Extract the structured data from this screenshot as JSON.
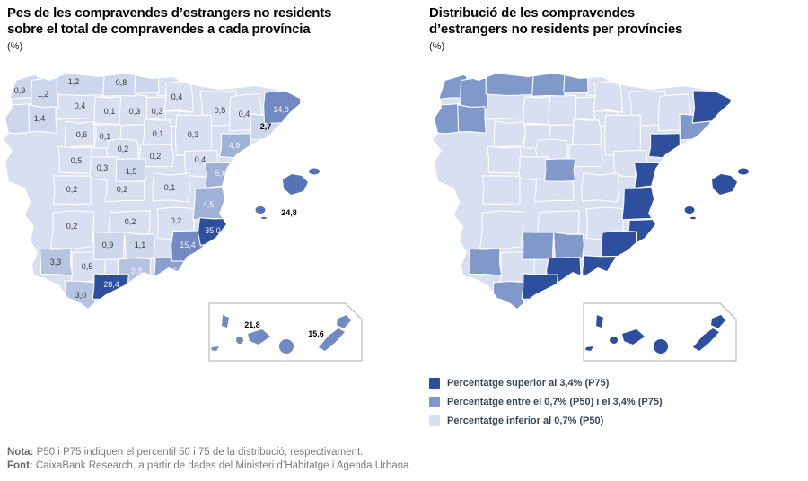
{
  "left_chart": {
    "title_line1": "Pes de les compravendes d’estrangers no residents",
    "title_line2": "sobre el total de compravendes a cada província",
    "unit": "(%)"
  },
  "right_chart": {
    "title_line1": "Distribució de les compravendes",
    "title_line2": "d’estrangers no residents per províncies",
    "unit": "(%)"
  },
  "legend": {
    "items": [
      {
        "label": "Percentatge superior al 3,4% (P75)",
        "color": "#2d4f9e"
      },
      {
        "label": "Percentatge entre el 0,7% (P50) i el 3,4% (P75)",
        "color": "#8099ca"
      },
      {
        "label": "Percentatge inferior al 0,7% (P50)",
        "color": "#d7dff1"
      }
    ]
  },
  "notes": {
    "nota_label": "Nota:",
    "nota_text": " P50 i P75 indiquen el percentil 50 i 75 de la distribució, respectivament.",
    "font_label": "Font:",
    "font_text": " CaixaBank Research, a partir de dades del Ministeri d’Habitatge i Agenda Urbana."
  },
  "colors": {
    "tiers": {
      "t0": "#d8dff1",
      "t1": "#cdd7ec",
      "t2": "#b6c3e1",
      "t3": "#a0b1d7",
      "t4": "#8ba0ce",
      "t5": "#7289c1",
      "t6": "#5673b5",
      "t7": "#2d4f9e"
    },
    "cats": {
      "low": "#d8dff1",
      "mid": "#8099ca",
      "dark": "#2d4f9e"
    },
    "label_dark": "#3b3b3b",
    "label_light": "#f0f3fa",
    "label_black": "#000000",
    "inset_border": "#adadad"
  },
  "chart_data": {
    "type": "choropleth",
    "maps": [
      {
        "id": "left",
        "title": "Pes de les compravendes d’estrangers no residents sobre el total de compravendes a cada província",
        "unit": "(%)",
        "encoding": "numeric value label per province"
      },
      {
        "id": "right",
        "title": "Distribució de les compravendes d’estrangers no residents per províncies",
        "unit": "(%)",
        "encoding": "percentile category per province (P75 / P50–P75 / below P50)"
      }
    ],
    "category_meaning": {
      "dark": "superior al 3,4% (P75)",
      "mid": "entre el 0,7% (P50) i el 3,4% (P75)",
      "low": "inferior al 0,7% (P50)"
    },
    "provinces": [
      {
        "id": "acoruna",
        "name": "A Coruña",
        "value": "0,9",
        "tier": "t1",
        "cat": "mid",
        "tone": "dark"
      },
      {
        "id": "lugo",
        "name": "Lugo",
        "value": "1,2",
        "tier": "t1",
        "cat": "mid",
        "tone": "dark"
      },
      {
        "id": "pontevedra",
        "name": "Pontevedra",
        "value": null,
        "tier": "t1",
        "cat": "mid",
        "tone": "dark"
      },
      {
        "id": "ourense",
        "name": "Ourense",
        "value": "1,4",
        "tier": "t1",
        "cat": "mid",
        "tone": "dark"
      },
      {
        "id": "asturias",
        "name": "Astúries",
        "value": "1,2",
        "tier": "t1",
        "cat": "mid",
        "tone": "dark"
      },
      {
        "id": "cantabria",
        "name": "Cantàbria",
        "value": "0,8",
        "tier": "t1",
        "cat": "mid",
        "tone": "dark"
      },
      {
        "id": "bizkaia",
        "name": "Bizkaia",
        "value": null,
        "tier": "t1",
        "cat": "mid",
        "tone": "dark"
      },
      {
        "id": "gipuzkoa",
        "name": "Gipuzkoa",
        "value": null,
        "tier": "t0",
        "cat": "low",
        "tone": "dark"
      },
      {
        "id": "alava",
        "name": "Àlaba",
        "value": "0,3",
        "tier": "t0",
        "cat": "low",
        "tone": "dark"
      },
      {
        "id": "navarra",
        "name": "Navarra",
        "value": "0,4",
        "tier": "t0",
        "cat": "low",
        "tone": "dark"
      },
      {
        "id": "larioja",
        "name": "La Rioja",
        "value": null,
        "tier": "t0",
        "cat": "low",
        "tone": "dark"
      },
      {
        "id": "leon",
        "name": "León",
        "value": "0,4",
        "tier": "t0",
        "cat": "low",
        "tone": "dark"
      },
      {
        "id": "palencia",
        "name": "Palència",
        "value": "0,1",
        "tier": "t0",
        "cat": "low",
        "tone": "dark"
      },
      {
        "id": "burgos",
        "name": "Burgos",
        "value": "0,3",
        "tier": "t0",
        "cat": "low",
        "tone": "dark"
      },
      {
        "id": "huesca",
        "name": "Osca",
        "value": "0,5",
        "tier": "t0",
        "cat": "low",
        "tone": "dark"
      },
      {
        "id": "lleida",
        "name": "Lleida",
        "value": "0,4",
        "tier": "t0",
        "cat": "low",
        "tone": "dark"
      },
      {
        "id": "girona",
        "name": "Girona",
        "value": "14,8",
        "tier": "t5",
        "cat": "dark",
        "tone": "light"
      },
      {
        "id": "barcelona",
        "name": "Barcelona",
        "value": "2,7",
        "tier": "t1",
        "cat": "mid",
        "tone": "black"
      },
      {
        "id": "tarragona",
        "name": "Tarragona",
        "value": "4,9",
        "tier": "t3",
        "cat": "dark",
        "tone": "light"
      },
      {
        "id": "zaragoza",
        "name": "Saragossa",
        "value": "0,3",
        "tier": "t0",
        "cat": "low",
        "tone": "dark"
      },
      {
        "id": "soria",
        "name": "Sòria",
        "value": "0,1",
        "tier": "t0",
        "cat": "low",
        "tone": "dark"
      },
      {
        "id": "zamora",
        "name": "Zamora",
        "value": "0,6",
        "tier": "t0",
        "cat": "low",
        "tone": "dark"
      },
      {
        "id": "valladolid",
        "name": "Valladolid",
        "value": "0,1",
        "tier": "t0",
        "cat": "low",
        "tone": "dark"
      },
      {
        "id": "segovia",
        "name": "Segòvia",
        "value": "0,2",
        "tier": "t0",
        "cat": "low",
        "tone": "dark"
      },
      {
        "id": "guadalajara",
        "name": "Guadalajara",
        "value": "0,2",
        "tier": "t0",
        "cat": "low",
        "tone": "dark"
      },
      {
        "id": "teruel",
        "name": "Terol",
        "value": "0,4",
        "tier": "t0",
        "cat": "low",
        "tone": "dark"
      },
      {
        "id": "salamanca",
        "name": "Salamanca",
        "value": "0,5",
        "tier": "t0",
        "cat": "low",
        "tone": "dark"
      },
      {
        "id": "avila",
        "name": "Àvila",
        "value": "0,3",
        "tier": "t0",
        "cat": "low",
        "tone": "dark"
      },
      {
        "id": "madrid",
        "name": "Madrid",
        "value": "1,5",
        "tier": "t1",
        "cat": "mid",
        "tone": "dark"
      },
      {
        "id": "castellon",
        "name": "Castelló",
        "value": "5,6",
        "tier": "t3",
        "cat": "dark",
        "tone": "light"
      },
      {
        "id": "caceres",
        "name": "Càceres",
        "value": "0,2",
        "tier": "t0",
        "cat": "low",
        "tone": "dark"
      },
      {
        "id": "toledo",
        "name": "Toledo",
        "value": "0,2",
        "tier": "t0",
        "cat": "low",
        "tone": "dark"
      },
      {
        "id": "cuenca",
        "name": "Conca",
        "value": "0,1",
        "tier": "t0",
        "cat": "low",
        "tone": "dark"
      },
      {
        "id": "valencia",
        "name": "València",
        "value": "4,5",
        "tier": "t3",
        "cat": "dark",
        "tone": "light"
      },
      {
        "id": "badajoz",
        "name": "Badajoz",
        "value": "0,2",
        "tier": "t0",
        "cat": "low",
        "tone": "dark"
      },
      {
        "id": "ciudadreal",
        "name": "Ciudad Real",
        "value": "0,2",
        "tier": "t0",
        "cat": "low",
        "tone": "dark"
      },
      {
        "id": "albacete",
        "name": "Albacete",
        "value": "0,2",
        "tier": "t0",
        "cat": "low",
        "tone": "dark"
      },
      {
        "id": "alicante",
        "name": "Alacant",
        "value": "35,0",
        "tier": "t7",
        "cat": "dark",
        "tone": "light"
      },
      {
        "id": "cordoba",
        "name": "Còrdova",
        "value": "0,9",
        "tier": "t1",
        "cat": "mid",
        "tone": "dark"
      },
      {
        "id": "jaen",
        "name": "Jaén",
        "value": "1,1",
        "tier": "t1",
        "cat": "mid",
        "tone": "dark"
      },
      {
        "id": "murcia",
        "name": "Múrcia",
        "value": "15,4",
        "tier": "t5",
        "cat": "dark",
        "tone": "light"
      },
      {
        "id": "huelva",
        "name": "Huelva",
        "value": "3,3",
        "tier": "t2",
        "cat": "mid",
        "tone": "dark"
      },
      {
        "id": "sevilla",
        "name": "Sevilla",
        "value": "0,5",
        "tier": "t0",
        "cat": "low",
        "tone": "dark"
      },
      {
        "id": "granada",
        "name": "Granada",
        "value": "3,8",
        "tier": "t2",
        "cat": "dark",
        "tone": "light"
      },
      {
        "id": "almeria",
        "name": "Almeria",
        "value": "8,6",
        "tier": "t4",
        "cat": "dark",
        "tone": "light"
      },
      {
        "id": "malaga",
        "name": "Màlaga",
        "value": "28,4",
        "tier": "t7",
        "cat": "dark",
        "tone": "light"
      },
      {
        "id": "cadiz",
        "name": "Cadis",
        "value": "3,0",
        "tier": "t2",
        "cat": "mid",
        "tone": "dark"
      },
      {
        "id": "balears",
        "name": "Illes Balears",
        "value": "24,8",
        "tier": "t6",
        "cat": "dark",
        "tone": "black"
      },
      {
        "id": "tenerife",
        "name": "Santa Cruz de Tenerife",
        "value": "21,8",
        "tier": "t5",
        "cat": "dark",
        "tone": "black"
      },
      {
        "id": "laspalmas",
        "name": "Las Palmas",
        "value": "15,6",
        "tier": "t5",
        "cat": "dark",
        "tone": "black"
      }
    ]
  }
}
